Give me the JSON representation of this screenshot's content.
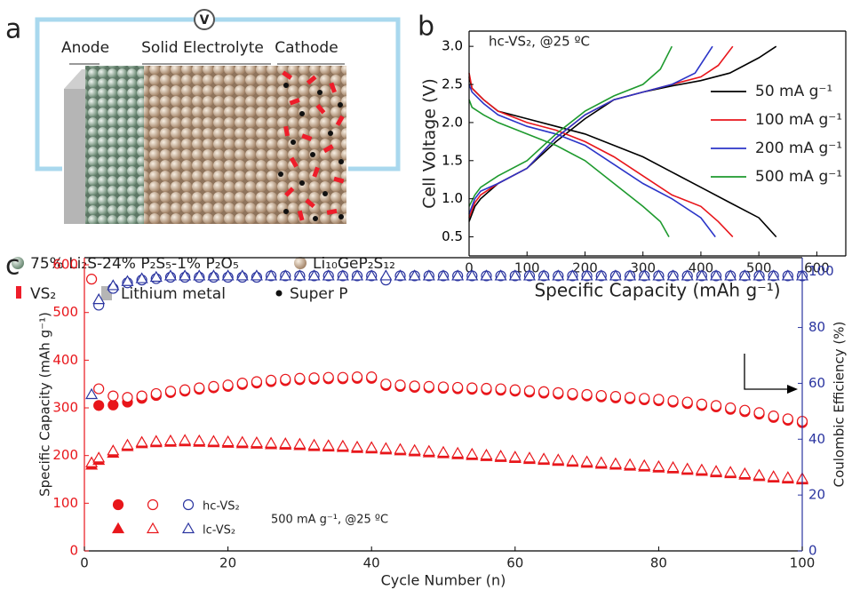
{
  "diagram": {
    "panel_label": "a",
    "voltmeter": "V",
    "labels": [
      "Anode",
      "Solid Electrolyte",
      "Cathode"
    ],
    "legend": [
      "75% Li₂S-24% P₂S₅-1% P₂O₅",
      "Li₁₀GeP₂S₁₂",
      "VS₂",
      "Lithium metal",
      "Super P"
    ]
  },
  "chart_data": [
    {
      "type": "line",
      "panel_label": "b",
      "annotation": "hc-VS₂,  @25 ºC",
      "xlabel": "Specific Capacity (mAh g⁻¹)",
      "ylabel": "Cell Voltage (V)",
      "xlim": [
        0,
        650
      ],
      "xticks": [
        0,
        100,
        200,
        300,
        400,
        500,
        600
      ],
      "ylim": [
        0.25,
        3.2
      ],
      "yticks": [
        0.5,
        {
          "value": 1,
          "label": "1.0"
        },
        1.5,
        {
          "value": 2,
          "label": "2.0"
        },
        2.5,
        {
          "value": 3,
          "label": "3.0"
        }
      ],
      "legend": "center right",
      "series": [
        {
          "name": "50 mA g⁻¹",
          "color": "#000000",
          "x": [
            0,
            5,
            25,
            50,
            100,
            150,
            200,
            250,
            300,
            350,
            400,
            450,
            500,
            530,
            null,
            0,
            10,
            20,
            50,
            100,
            150,
            200,
            250,
            300,
            350,
            400,
            450,
            500,
            530
          ],
          "values": [
            2.6,
            2.45,
            2.3,
            2.15,
            2.05,
            1.95,
            1.85,
            1.7,
            1.55,
            1.35,
            1.15,
            0.95,
            0.75,
            0.5,
            null,
            0.7,
            0.9,
            1.0,
            1.2,
            1.4,
            1.75,
            2.05,
            2.3,
            2.4,
            2.48,
            2.55,
            2.65,
            2.85,
            3.0
          ]
        },
        {
          "name": "100 mA g⁻¹",
          "color": "#e8161b",
          "x": [
            0,
            5,
            25,
            50,
            100,
            150,
            200,
            250,
            300,
            350,
            400,
            430,
            455,
            null,
            0,
            10,
            20,
            50,
            100,
            150,
            200,
            250,
            300,
            350,
            400,
            430,
            455
          ],
          "values": [
            2.65,
            2.45,
            2.3,
            2.15,
            2.0,
            1.9,
            1.75,
            1.55,
            1.3,
            1.05,
            0.9,
            0.7,
            0.5,
            null,
            0.75,
            0.95,
            1.05,
            1.2,
            1.4,
            1.8,
            2.1,
            2.3,
            2.4,
            2.5,
            2.6,
            2.75,
            3.0
          ]
        },
        {
          "name": "200 mA g⁻¹",
          "color": "#2b35c8",
          "x": [
            0,
            5,
            25,
            50,
            100,
            150,
            200,
            250,
            300,
            350,
            400,
            425,
            null,
            0,
            10,
            20,
            50,
            100,
            150,
            200,
            250,
            300,
            350,
            390,
            420
          ],
          "values": [
            2.5,
            2.4,
            2.25,
            2.1,
            1.95,
            1.85,
            1.7,
            1.45,
            1.2,
            1.0,
            0.75,
            0.5,
            null,
            0.8,
            1.0,
            1.1,
            1.2,
            1.4,
            1.8,
            2.1,
            2.3,
            2.4,
            2.5,
            2.65,
            3.0
          ]
        },
        {
          "name": "500 mA g⁻¹",
          "color": "#1e9a2e",
          "x": [
            0,
            5,
            25,
            50,
            100,
            150,
            200,
            250,
            300,
            330,
            345,
            null,
            0,
            10,
            20,
            50,
            100,
            150,
            200,
            250,
            300,
            330,
            350
          ],
          "values": [
            2.3,
            2.2,
            2.1,
            2.0,
            1.85,
            1.7,
            1.5,
            1.2,
            0.9,
            0.7,
            0.5,
            null,
            0.9,
            1.05,
            1.15,
            1.3,
            1.5,
            1.85,
            2.15,
            2.35,
            2.5,
            2.7,
            3.0
          ]
        }
      ]
    },
    {
      "type": "scatter",
      "panel_label": "c",
      "annotation": "500 mA g⁻¹, @25 ºC",
      "xlabel": "Cycle Number (n)",
      "ylabel": "Specific Capacity (mAh g⁻¹)",
      "y2label": "Coulombic Efficiency (%)",
      "xlim": [
        0,
        100
      ],
      "xticks": [
        0,
        20,
        40,
        60,
        80,
        100
      ],
      "ylim": [
        0,
        615
      ],
      "yticks": [
        0,
        100,
        200,
        300,
        400,
        500,
        600
      ],
      "ycolor": "#e8161b",
      "y2lim": [
        0,
        105
      ],
      "y2ticks": [
        0,
        20,
        40,
        60,
        80,
        100
      ],
      "y2color": "#2b35a0",
      "legend": "lower left",
      "x": [
        1,
        2,
        4,
        6,
        8,
        10,
        12,
        14,
        16,
        18,
        20,
        22,
        24,
        26,
        28,
        30,
        32,
        34,
        36,
        38,
        40,
        42,
        44,
        46,
        48,
        50,
        52,
        54,
        56,
        58,
        60,
        62,
        64,
        66,
        68,
        70,
        72,
        74,
        76,
        78,
        80,
        82,
        84,
        86,
        88,
        90,
        92,
        94,
        96,
        98,
        100
      ],
      "series": [
        {
          "name": "hc-VS₂",
          "marker": "circle",
          "color": "#e8161b",
          "efficiency_color": "#2b35a0",
          "discharge": [
            null,
            305,
            306,
            312,
            320,
            326,
            332,
            335,
            339,
            342,
            345,
            349,
            352,
            355,
            357,
            359,
            360,
            361,
            361,
            362,
            362,
            347,
            345,
            343,
            342,
            341,
            340,
            339,
            338,
            337,
            335,
            333,
            331,
            329,
            327,
            325,
            323,
            321,
            319,
            317,
            315,
            312,
            309,
            305,
            302,
            297,
            292,
            287,
            280,
            274,
            269
          ],
          "charge": [
            570,
            340,
            325,
            322,
            325,
            330,
            335,
            338,
            342,
            345,
            348,
            352,
            355,
            358,
            360,
            362,
            363,
            364,
            364,
            365,
            365,
            350,
            348,
            346,
            345,
            344,
            343,
            342,
            341,
            340,
            338,
            336,
            334,
            332,
            330,
            328,
            326,
            324,
            322,
            320,
            318,
            315,
            312,
            308,
            305,
            300,
            295,
            290,
            283,
            277,
            272
          ],
          "efficiency": [
            null,
            88,
            94,
            96,
            97,
            97.5,
            98,
            98,
            98,
            98,
            98,
            98,
            98,
            98.5,
            98.5,
            98.5,
            98.5,
            98.5,
            98.5,
            98.5,
            98.5,
            97,
            98.5,
            98.5,
            98.5,
            98.5,
            98.5,
            98.5,
            98.5,
            98.5,
            98.5,
            98.5,
            98.5,
            98.5,
            98.5,
            98.5,
            98.5,
            98.5,
            98.5,
            98.5,
            98.5,
            98.5,
            98.5,
            98.5,
            98.5,
            98.5,
            98.5,
            98.5,
            98.5,
            98.5,
            98.5
          ]
        },
        {
          "name": "lc-VS₂",
          "marker": "triangle",
          "color": "#e8161b",
          "efficiency_color": "#2b35a0",
          "discharge": [
            180,
            190,
            205,
            219,
            225,
            227,
            228,
            229,
            228,
            227,
            226,
            225,
            224,
            223,
            222,
            221,
            219,
            218,
            217,
            215,
            214,
            212,
            210,
            208,
            206,
            204,
            202,
            200,
            198,
            196,
            194,
            192,
            190,
            188,
            186,
            184,
            182,
            180,
            178,
            176,
            174,
            172,
            169,
            167,
            164,
            162,
            159,
            156,
            153,
            151,
            149
          ],
          "charge": [
            185,
            195,
            210,
            222,
            228,
            230,
            231,
            232,
            231,
            230,
            229,
            228,
            227,
            226,
            225,
            224,
            222,
            221,
            220,
            218,
            217,
            215,
            213,
            211,
            209,
            207,
            205,
            203,
            201,
            199,
            197,
            195,
            193,
            191,
            189,
            187,
            185,
            183,
            181,
            179,
            177,
            175,
            172,
            170,
            167,
            165,
            162,
            159,
            156,
            154,
            152
          ],
          "efficiency": [
            56,
            90,
            95,
            96.5,
            97.5,
            98,
            98.5,
            98.5,
            98.5,
            98.5,
            98.5,
            98.5,
            98.5,
            98.5,
            98.5,
            98.5,
            98.5,
            98.5,
            98.5,
            98.5,
            98.5,
            98.5,
            98.5,
            98.5,
            98.5,
            98.5,
            98.5,
            98.5,
            98.5,
            98.5,
            98.5,
            98.5,
            98.5,
            98.5,
            98.5,
            98.5,
            98.5,
            98.5,
            98.5,
            98.5,
            98.5,
            98.5,
            98.5,
            98.5,
            98.5,
            98.5,
            98.5,
            98.5,
            98.5,
            98.5,
            98.5
          ]
        }
      ]
    }
  ]
}
